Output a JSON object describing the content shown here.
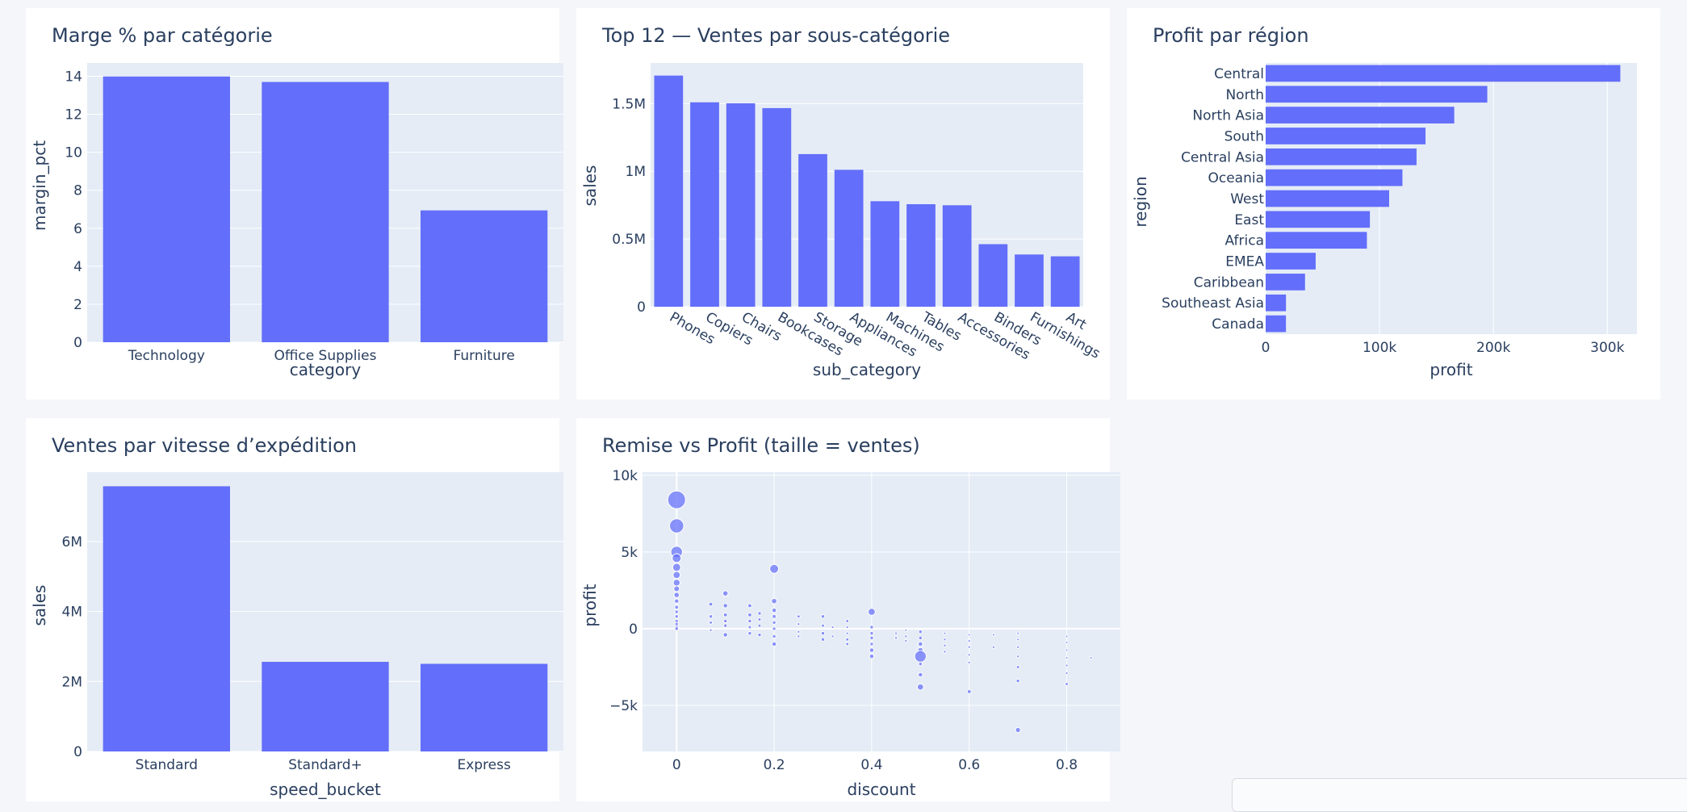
{
  "colors": {
    "bar": "#636efa",
    "plot_bg": "#e5ecf6",
    "grid": "#ffffff",
    "card_bg": "#ffffff",
    "page_bg": "#f5f6fa",
    "text": "#2a3f5f",
    "marker_line": "#ffffff"
  },
  "chart_data": [
    {
      "id": "margin",
      "type": "bar",
      "title": "Marge % par catégorie",
      "xlabel": "category",
      "ylabel": "margin_pct",
      "categories": [
        "Technology",
        "Office Supplies",
        "Furniture"
      ],
      "values": [
        13.99,
        13.7,
        6.94
      ],
      "ylim": [
        0,
        14.7
      ],
      "yticks": [
        0,
        2,
        4,
        6,
        8,
        10,
        12,
        14
      ],
      "ytick_labels": [
        "0",
        "2",
        "4",
        "6",
        "8",
        "10",
        "12",
        "14"
      ],
      "grid": true
    },
    {
      "id": "subcat",
      "type": "bar",
      "title": "Top 12 — Ventes par sous-catégorie",
      "xlabel": "sub_category",
      "ylabel": "sales",
      "categories": [
        "Phones",
        "Copiers",
        "Chairs",
        "Bookcases",
        "Storage",
        "Appliances",
        "Machines",
        "Tables",
        "Accessories",
        "Binders",
        "Furnishings",
        "Art"
      ],
      "values": [
        1706824,
        1509437,
        1501682,
        1466572,
        1127085,
        1011064,
        779060,
        757041,
        749237,
        461911,
        385578,
        372092
      ],
      "ylim": [
        0,
        1800000
      ],
      "yticks": [
        0,
        500000,
        1000000,
        1500000
      ],
      "ytick_labels": [
        "0",
        "0.5M",
        "1M",
        "1.5M"
      ],
      "grid": true
    },
    {
      "id": "region",
      "type": "bar",
      "orientation": "horizontal",
      "title": "Profit par région",
      "xlabel": "profit",
      "ylabel": "region",
      "categories": [
        "Central",
        "North",
        "North Asia",
        "South",
        "Central Asia",
        "Oceania",
        "West",
        "East",
        "Africa",
        "EMEA",
        "Caribbean",
        "Southeast Asia",
        "Canada"
      ],
      "values": [
        311404,
        194597,
        165578,
        140355,
        132480,
        120089,
        108418,
        91523,
        88872,
        43898,
        34572,
        17852,
        17817
      ],
      "xlim": [
        0,
        326000
      ],
      "xticks": [
        0,
        100000,
        200000,
        300000
      ],
      "xtick_labels": [
        "0",
        "100k",
        "200k",
        "300k"
      ],
      "grid": true
    },
    {
      "id": "speed",
      "type": "bar",
      "title": "Ventes par vitesse d’expédition",
      "xlabel": "speed_bucket",
      "ylabel": "sales",
      "categories": [
        "Standard",
        "Standard+",
        "Express"
      ],
      "values": [
        7578000,
        2561000,
        2504000
      ],
      "ylim": [
        0,
        7980000
      ],
      "yticks": [
        0,
        2000000,
        4000000,
        6000000
      ],
      "ytick_labels": [
        "0",
        "2M",
        "4M",
        "6M"
      ],
      "grid": true
    },
    {
      "id": "scatter",
      "type": "scatter",
      "title": "Remise vs Profit (taille = ventes)",
      "xlabel": "discount",
      "ylabel": "profit",
      "xlim": [
        -0.07,
        0.91
      ],
      "ylim": [
        -8000,
        10200
      ],
      "xticks": [
        0,
        0.2,
        0.4,
        0.6,
        0.8
      ],
      "xtick_labels": [
        "0",
        "0.2",
        "0.4",
        "0.6",
        "0.8"
      ],
      "yticks": [
        -5000,
        0,
        5000,
        10000
      ],
      "ytick_labels": [
        "−5k",
        "0",
        "5k",
        "10k"
      ],
      "grid": true,
      "size_encodes": "sales",
      "points": [
        {
          "x": 0,
          "y": 8400,
          "s": 1.0
        },
        {
          "x": 0,
          "y": 6700,
          "s": 0.8
        },
        {
          "x": 0,
          "y": 5000,
          "s": 0.65
        },
        {
          "x": 0,
          "y": 4600,
          "s": 0.5
        },
        {
          "x": 0,
          "y": 4000,
          "s": 0.45
        },
        {
          "x": 0,
          "y": 3500,
          "s": 0.4
        },
        {
          "x": 0,
          "y": 3000,
          "s": 0.38
        },
        {
          "x": 0,
          "y": 2600,
          "s": 0.32
        },
        {
          "x": 0,
          "y": 2200,
          "s": 0.3
        },
        {
          "x": 0,
          "y": 1800,
          "s": 0.25
        },
        {
          "x": 0,
          "y": 1400,
          "s": 0.22
        },
        {
          "x": 0,
          "y": 1100,
          "s": 0.2
        },
        {
          "x": 0,
          "y": 800,
          "s": 0.2
        },
        {
          "x": 0,
          "y": 500,
          "s": 0.2
        },
        {
          "x": 0,
          "y": 300,
          "s": 0.2
        },
        {
          "x": 0,
          "y": 100,
          "s": 0.2
        },
        {
          "x": 0,
          "y": 0,
          "s": 0.2
        },
        {
          "x": 0.07,
          "y": 1600,
          "s": 0.22
        },
        {
          "x": 0.07,
          "y": 800,
          "s": 0.2
        },
        {
          "x": 0.07,
          "y": 400,
          "s": 0.18
        },
        {
          "x": 0.07,
          "y": -100,
          "s": 0.15
        },
        {
          "x": 0.1,
          "y": 2300,
          "s": 0.3
        },
        {
          "x": 0.1,
          "y": 1500,
          "s": 0.25
        },
        {
          "x": 0.1,
          "y": 900,
          "s": 0.22
        },
        {
          "x": 0.1,
          "y": 500,
          "s": 0.2
        },
        {
          "x": 0.1,
          "y": 200,
          "s": 0.2
        },
        {
          "x": 0.1,
          "y": -400,
          "s": 0.25
        },
        {
          "x": 0.15,
          "y": 1500,
          "s": 0.22
        },
        {
          "x": 0.15,
          "y": 900,
          "s": 0.22
        },
        {
          "x": 0.15,
          "y": 500,
          "s": 0.2
        },
        {
          "x": 0.15,
          "y": 100,
          "s": 0.18
        },
        {
          "x": 0.15,
          "y": -300,
          "s": 0.2
        },
        {
          "x": 0.17,
          "y": 1000,
          "s": 0.2
        },
        {
          "x": 0.17,
          "y": 600,
          "s": 0.18
        },
        {
          "x": 0.17,
          "y": 200,
          "s": 0.18
        },
        {
          "x": 0.17,
          "y": -400,
          "s": 0.2
        },
        {
          "x": 0.2,
          "y": 3900,
          "s": 0.5
        },
        {
          "x": 0.2,
          "y": 1800,
          "s": 0.3
        },
        {
          "x": 0.2,
          "y": 1200,
          "s": 0.25
        },
        {
          "x": 0.2,
          "y": 800,
          "s": 0.22
        },
        {
          "x": 0.2,
          "y": 400,
          "s": 0.2
        },
        {
          "x": 0.2,
          "y": 0,
          "s": 0.2
        },
        {
          "x": 0.2,
          "y": -500,
          "s": 0.2
        },
        {
          "x": 0.2,
          "y": -1000,
          "s": 0.25
        },
        {
          "x": 0.25,
          "y": 800,
          "s": 0.18
        },
        {
          "x": 0.25,
          "y": 300,
          "s": 0.15
        },
        {
          "x": 0.25,
          "y": -200,
          "s": 0.15
        },
        {
          "x": 0.25,
          "y": -500,
          "s": 0.15
        },
        {
          "x": 0.3,
          "y": 800,
          "s": 0.2
        },
        {
          "x": 0.3,
          "y": 200,
          "s": 0.18
        },
        {
          "x": 0.3,
          "y": -300,
          "s": 0.2
        },
        {
          "x": 0.3,
          "y": -700,
          "s": 0.2
        },
        {
          "x": 0.32,
          "y": 100,
          "s": 0.15
        },
        {
          "x": 0.32,
          "y": -500,
          "s": 0.15
        },
        {
          "x": 0.35,
          "y": 500,
          "s": 0.18
        },
        {
          "x": 0.35,
          "y": 100,
          "s": 0.15
        },
        {
          "x": 0.35,
          "y": -300,
          "s": 0.15
        },
        {
          "x": 0.35,
          "y": -700,
          "s": 0.18
        },
        {
          "x": 0.35,
          "y": -1000,
          "s": 0.18
        },
        {
          "x": 0.4,
          "y": 1100,
          "s": 0.4
        },
        {
          "x": 0.4,
          "y": 100,
          "s": 0.2
        },
        {
          "x": 0.4,
          "y": -300,
          "s": 0.2
        },
        {
          "x": 0.4,
          "y": -600,
          "s": 0.2
        },
        {
          "x": 0.4,
          "y": -1000,
          "s": 0.2
        },
        {
          "x": 0.4,
          "y": -1400,
          "s": 0.25
        },
        {
          "x": 0.4,
          "y": -1800,
          "s": 0.25
        },
        {
          "x": 0.45,
          "y": -300,
          "s": 0.15
        },
        {
          "x": 0.45,
          "y": -600,
          "s": 0.15
        },
        {
          "x": 0.47,
          "y": -100,
          "s": 0.12
        },
        {
          "x": 0.47,
          "y": -500,
          "s": 0.15
        },
        {
          "x": 0.47,
          "y": -800,
          "s": 0.15
        },
        {
          "x": 0.5,
          "y": -200,
          "s": 0.2
        },
        {
          "x": 0.5,
          "y": -600,
          "s": 0.2
        },
        {
          "x": 0.5,
          "y": -1000,
          "s": 0.25
        },
        {
          "x": 0.5,
          "y": -1400,
          "s": 0.3
        },
        {
          "x": 0.5,
          "y": -1800,
          "s": 0.65
        },
        {
          "x": 0.5,
          "y": -2300,
          "s": 0.2
        },
        {
          "x": 0.5,
          "y": -3000,
          "s": 0.25
        },
        {
          "x": 0.5,
          "y": -3800,
          "s": 0.35
        },
        {
          "x": 0.55,
          "y": -300,
          "s": 0.12
        },
        {
          "x": 0.55,
          "y": -700,
          "s": 0.15
        },
        {
          "x": 0.55,
          "y": -1100,
          "s": 0.15
        },
        {
          "x": 0.55,
          "y": -1500,
          "s": 0.15
        },
        {
          "x": 0.6,
          "y": -400,
          "s": 0.12
        },
        {
          "x": 0.6,
          "y": -800,
          "s": 0.15
        },
        {
          "x": 0.6,
          "y": -1200,
          "s": 0.15
        },
        {
          "x": 0.6,
          "y": -1700,
          "s": 0.15
        },
        {
          "x": 0.6,
          "y": -2200,
          "s": 0.15
        },
        {
          "x": 0.6,
          "y": -4100,
          "s": 0.22
        },
        {
          "x": 0.65,
          "y": -400,
          "s": 0.12
        },
        {
          "x": 0.65,
          "y": -1200,
          "s": 0.15
        },
        {
          "x": 0.7,
          "y": -300,
          "s": 0.12
        },
        {
          "x": 0.7,
          "y": -700,
          "s": 0.12
        },
        {
          "x": 0.7,
          "y": -1200,
          "s": 0.15
        },
        {
          "x": 0.7,
          "y": -1800,
          "s": 0.15
        },
        {
          "x": 0.7,
          "y": -2500,
          "s": 0.18
        },
        {
          "x": 0.7,
          "y": -3400,
          "s": 0.2
        },
        {
          "x": 0.7,
          "y": -6600,
          "s": 0.28
        },
        {
          "x": 0.8,
          "y": -500,
          "s": 0.12
        },
        {
          "x": 0.8,
          "y": -900,
          "s": 0.12
        },
        {
          "x": 0.8,
          "y": -1400,
          "s": 0.12
        },
        {
          "x": 0.8,
          "y": -1900,
          "s": 0.12
        },
        {
          "x": 0.8,
          "y": -2400,
          "s": 0.15
        },
        {
          "x": 0.8,
          "y": -2900,
          "s": 0.15
        },
        {
          "x": 0.8,
          "y": -3600,
          "s": 0.18
        },
        {
          "x": 0.85,
          "y": -1900,
          "s": 0.08
        }
      ]
    }
  ]
}
